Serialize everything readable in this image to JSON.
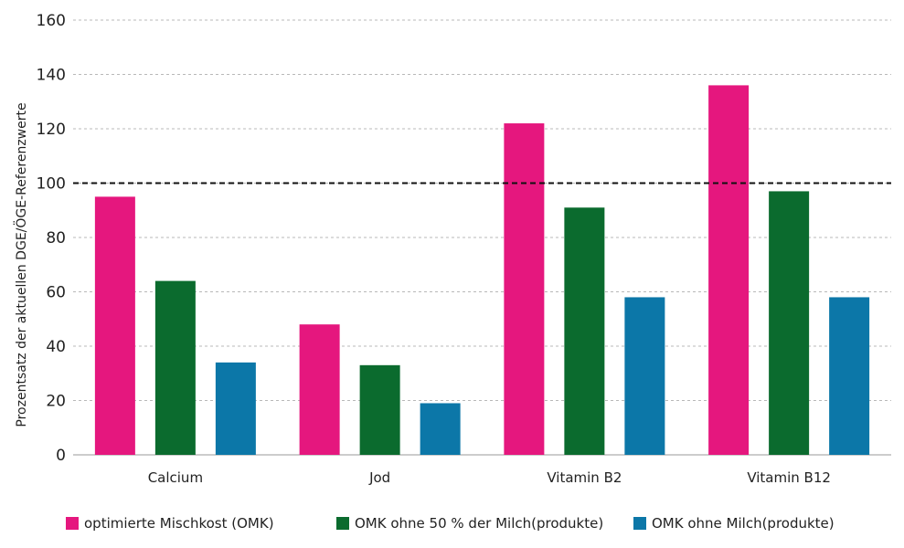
{
  "chart_data": {
    "type": "bar",
    "title": "",
    "xlabel": "",
    "ylabel": "Prozentsatz der aktuellen DGE/ÖGE-Referenzwerte",
    "ylim": [
      0,
      160
    ],
    "yticks": [
      0,
      20,
      40,
      60,
      80,
      100,
      120,
      140,
      160
    ],
    "grid": true,
    "reference_line": {
      "value": 100,
      "style": "dashed"
    },
    "legend_position": "bottom",
    "categories": [
      "Calcium",
      "Jod",
      "Vitamin B2",
      "Vitamin B12"
    ],
    "series": [
      {
        "name": "optimierte Mischkost (OMK)",
        "color": "#e5177e",
        "values": [
          95,
          48,
          122,
          136
        ]
      },
      {
        "name": "OMK ohne 50 % der Milch(produkte)",
        "color": "#0b6b2e",
        "values": [
          64,
          33,
          91,
          97
        ]
      },
      {
        "name": "OMK ohne Milch(produkte)",
        "color": "#0c77a8",
        "values": [
          34,
          19,
          58,
          58
        ]
      }
    ]
  }
}
